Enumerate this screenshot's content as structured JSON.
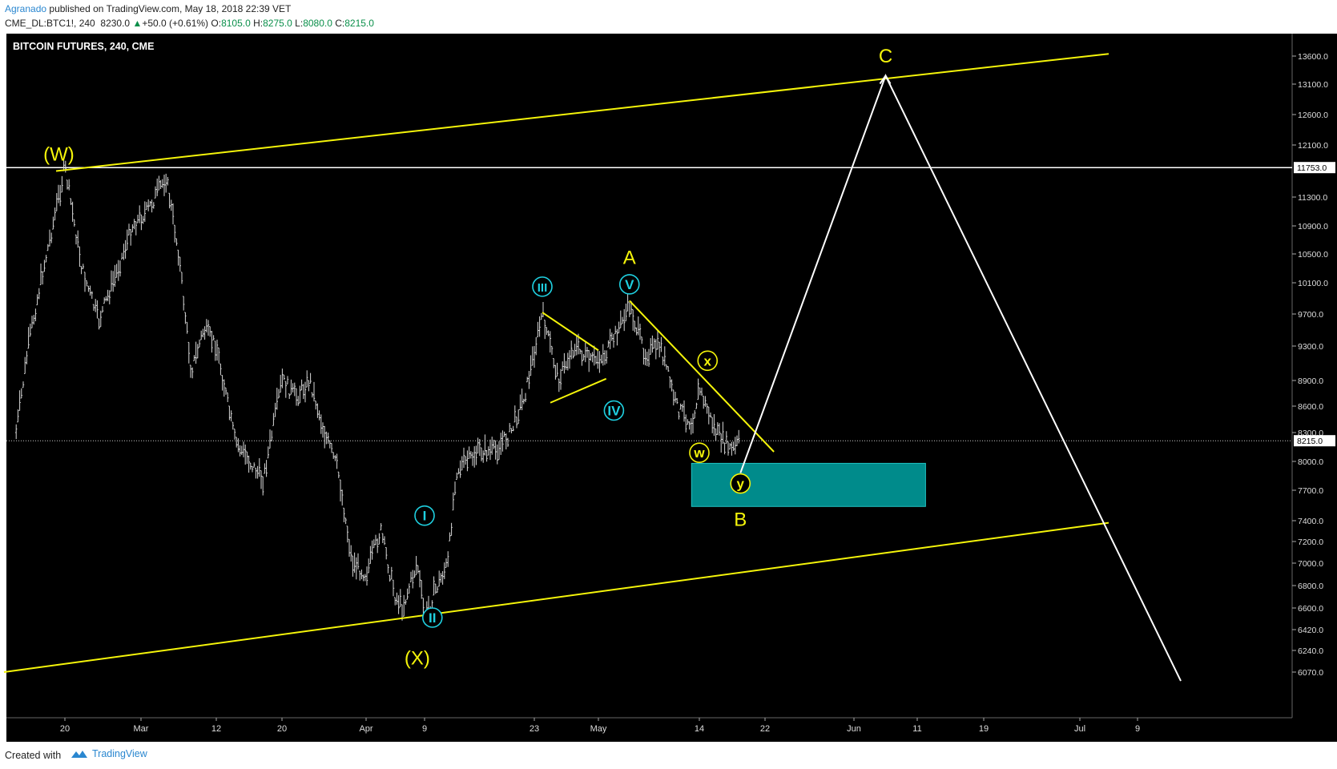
{
  "header": {
    "author": "Agranado",
    "published": "published on TradingView.com, May 18, 2018 22:39 VET",
    "symbol": "CME_DL:BTC1!, 240",
    "last": "8230.0",
    "change_arrow": "▲",
    "change": "+50.0 (+0.61%)",
    "o_label": "O:",
    "o_value": "8105.0",
    "h_label": "H:",
    "h_value": "8275.0",
    "l_label": "L:",
    "l_value": "8080.0",
    "c_label": "C:",
    "c_value": "8215.0"
  },
  "footer": {
    "created_with": "Created with",
    "brand": "TradingView",
    "logo_icon": "tradingview-logo-icon"
  },
  "colors": {
    "background": "#000000",
    "bars": "#d9d9d9",
    "yellow": "#f5f50a",
    "cyan": "#1fd0e0",
    "box": "#008b8b",
    "white": "#ffffff"
  },
  "chart_data": {
    "type": "bar",
    "title": "BITCOIN FUTURES, 240, CME",
    "ylim": [
      6000,
      13900
    ],
    "x_ticks": [
      "20",
      "Mar",
      "12",
      "20",
      "Apr",
      "9",
      "23",
      "May",
      "14",
      "22",
      "Jun",
      "11",
      "19",
      "Jul",
      "9"
    ],
    "y_ticks": [
      "13600.0",
      "13100.0",
      "12600.0",
      "12100.0",
      "11300.0",
      "10900.0",
      "10500.0",
      "10100.0",
      "9700.0",
      "9300.0",
      "8900.0",
      "8600.0",
      "8300.0",
      "8000.0",
      "7700.0",
      "7400.0",
      "7200.0",
      "7000.0",
      "6800.0",
      "6600.0",
      "6420.0",
      "6240.0",
      "6070.0"
    ],
    "price_tags": [
      {
        "label": "11753.0",
        "value": 11753.0
      },
      {
        "label": "8215.0",
        "value": 8215.0
      }
    ],
    "price_path": [
      {
        "date": "2018-02-12",
        "price": 8300
      },
      {
        "date": "2018-02-14",
        "price": 9300
      },
      {
        "date": "2018-02-16",
        "price": 10100
      },
      {
        "date": "2018-02-18",
        "price": 10900
      },
      {
        "date": "2018-02-20",
        "price": 11753
      },
      {
        "date": "2018-02-22",
        "price": 10300
      },
      {
        "date": "2018-02-24",
        "price": 9600
      },
      {
        "date": "2018-02-26",
        "price": 10200
      },
      {
        "date": "2018-02-28",
        "price": 10900
      },
      {
        "date": "2018-03-02",
        "price": 11100
      },
      {
        "date": "2018-03-05",
        "price": 11600
      },
      {
        "date": "2018-03-07",
        "price": 10500
      },
      {
        "date": "2018-03-09",
        "price": 9000
      },
      {
        "date": "2018-03-11",
        "price": 9500
      },
      {
        "date": "2018-03-13",
        "price": 9300
      },
      {
        "date": "2018-03-15",
        "price": 8200
      },
      {
        "date": "2018-03-18",
        "price": 7800
      },
      {
        "date": "2018-03-20",
        "price": 8900
      },
      {
        "date": "2018-03-22",
        "price": 8700
      },
      {
        "date": "2018-03-24",
        "price": 8900
      },
      {
        "date": "2018-03-26",
        "price": 8300
      },
      {
        "date": "2018-03-28",
        "price": 7900
      },
      {
        "date": "2018-03-30",
        "price": 7000
      },
      {
        "date": "2018-04-01",
        "price": 6900
      },
      {
        "date": "2018-04-03",
        "price": 7300
      },
      {
        "date": "2018-04-05",
        "price": 6700
      },
      {
        "date": "2018-04-06",
        "price": 6600
      },
      {
        "date": "2018-04-08",
        "price": 7000
      },
      {
        "date": "2018-04-09",
        "price": 6500
      },
      {
        "date": "2018-04-10",
        "price": 6700
      },
      {
        "date": "2018-04-12",
        "price": 7000
      },
      {
        "date": "2018-04-13",
        "price": 7900
      },
      {
        "date": "2018-04-16",
        "price": 8100
      },
      {
        "date": "2018-04-18",
        "price": 8100
      },
      {
        "date": "2018-04-20",
        "price": 8300
      },
      {
        "date": "2018-04-22",
        "price": 8800
      },
      {
        "date": "2018-04-24",
        "price": 9700
      },
      {
        "date": "2018-04-26",
        "price": 8900
      },
      {
        "date": "2018-04-28",
        "price": 9300
      },
      {
        "date": "2018-04-30",
        "price": 9100
      },
      {
        "date": "2018-05-02",
        "price": 9200
      },
      {
        "date": "2018-05-05",
        "price": 9800
      },
      {
        "date": "2018-05-07",
        "price": 9200
      },
      {
        "date": "2018-05-09",
        "price": 9300
      },
      {
        "date": "2018-05-11",
        "price": 8600
      },
      {
        "date": "2018-05-13",
        "price": 8400
      },
      {
        "date": "2018-05-14",
        "price": 8800
      },
      {
        "date": "2018-05-16",
        "price": 8300
      },
      {
        "date": "2018-05-18",
        "price": 8100
      },
      {
        "date": "2018-05-19",
        "price": 8215
      }
    ],
    "horizontal_line": {
      "value": 11753.0,
      "color": "#ffffff"
    },
    "current_price_line": {
      "value": 8215.0,
      "style": "dotted"
    },
    "channel_upper": {
      "from": {
        "date": "2018-02-09",
        "price": 11700
      },
      "to": {
        "date": "2018-07-05",
        "price": 13640
      }
    },
    "channel_lower": {
      "from": {
        "date": "2018-02-10",
        "price": 6070
      },
      "to": {
        "date": "2018-07-05",
        "price": 7380
      }
    },
    "triangle_upper": {
      "from": {
        "date": "2018-04-24",
        "price": 9720
      },
      "to": {
        "date": "2018-05-01",
        "price": 9250
      }
    },
    "triangle_lower": {
      "from": {
        "date": "2018-04-25",
        "price": 8640
      },
      "to": {
        "date": "2018-05-02",
        "price": 8920
      }
    },
    "wedge_line": {
      "from": {
        "date": "2018-05-05",
        "price": 9870
      },
      "to": {
        "date": "2018-05-23",
        "price": 8100
      }
    },
    "target_box": {
      "from": {
        "date": "2018-05-13",
        "price": 7980
      },
      "to": {
        "date": "2018-06-12",
        "price": 7540
      }
    },
    "projection": [
      {
        "date": "2018-05-19",
        "price": 7880
      },
      {
        "date": "2018-06-06",
        "price": 13250
      },
      {
        "date": "2018-07-15",
        "price": 6000
      }
    ],
    "annotations": [
      {
        "text": "(W)",
        "date": "2018-02-19",
        "price": 11960,
        "color": "#f5f50a",
        "circled": false
      },
      {
        "text": "(X)",
        "date": "2018-04-08",
        "price": 6180,
        "color": "#f5f50a",
        "circled": false
      },
      {
        "text": "A",
        "date": "2018-05-05",
        "price": 10450,
        "color": "#f5f50a",
        "circled": false
      },
      {
        "text": "B",
        "date": "2018-05-19",
        "price": 7410,
        "color": "#f5f50a",
        "circled": false
      },
      {
        "text": "C",
        "date": "2018-06-06",
        "price": 13600,
        "color": "#f5f50a",
        "circled": false
      },
      {
        "text": "I",
        "date": "2018-04-09",
        "price": 7450,
        "color": "#1fd0e0",
        "circled": true
      },
      {
        "text": "II",
        "date": "2018-04-10",
        "price": 6520,
        "color": "#1fd0e0",
        "circled": true
      },
      {
        "text": "III",
        "date": "2018-04-24",
        "price": 10050,
        "color": "#1fd0e0",
        "circled": true
      },
      {
        "text": "IV",
        "date": "2018-05-03",
        "price": 8550,
        "color": "#1fd0e0",
        "circled": true
      },
      {
        "text": "V",
        "date": "2018-05-05",
        "price": 10080,
        "color": "#1fd0e0",
        "circled": true
      },
      {
        "text": "w",
        "date": "2018-05-14",
        "price": 8090,
        "color": "#f5f50a",
        "circled": true
      },
      {
        "text": "x",
        "date": "2018-05-15",
        "price": 9130,
        "color": "#f5f50a",
        "circled": true
      },
      {
        "text": "y",
        "date": "2018-05-19",
        "price": 7770,
        "color": "#f5f50a",
        "circled": true
      }
    ]
  }
}
